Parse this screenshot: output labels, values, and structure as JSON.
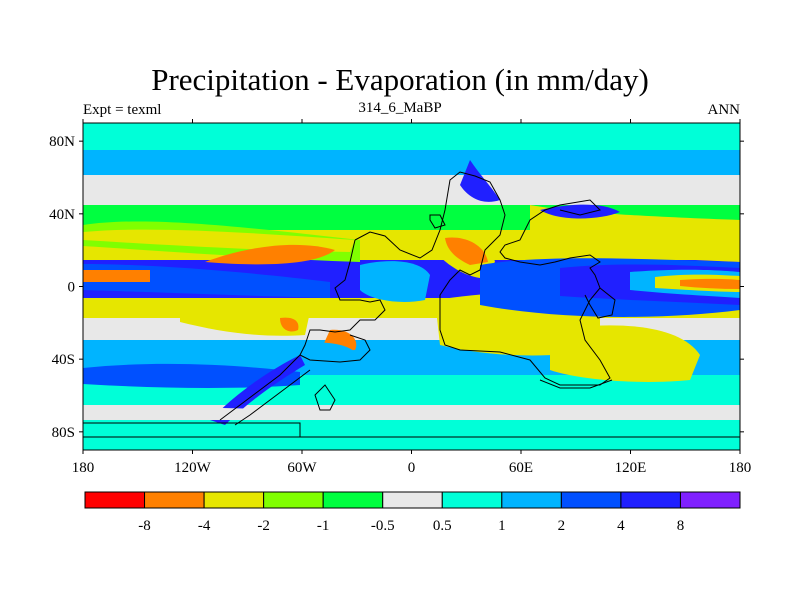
{
  "title": "Precipitation - Evaporation (in mm/day)",
  "expt_label": "Expt = texml",
  "run_label": "314_6_MaBP",
  "season_label": "ANN",
  "map": {
    "lon_range": [
      -180,
      180
    ],
    "lat_range": [
      -90,
      90
    ],
    "lat_ticks": [
      {
        "value": 80,
        "label": "80N"
      },
      {
        "value": 40,
        "label": "40N"
      },
      {
        "value": 0,
        "label": "0"
      },
      {
        "value": -40,
        "label": "40S"
      },
      {
        "value": -80,
        "label": "80S"
      }
    ],
    "lon_ticks": [
      {
        "value": -180,
        "label": "180"
      },
      {
        "value": -120,
        "label": "120W"
      },
      {
        "value": -60,
        "label": "60W"
      },
      {
        "value": 0,
        "label": "0"
      },
      {
        "value": 60,
        "label": "60E"
      },
      {
        "value": 120,
        "label": "120E"
      },
      {
        "value": 180,
        "label": "180"
      }
    ]
  },
  "colorbar": {
    "colors": [
      "#ff0000",
      "#ff8000",
      "#e6e600",
      "#80ff00",
      "#00ff40",
      "#e8e8e8",
      "#00ffd8",
      "#00b4ff",
      "#0050ff",
      "#2020ff",
      "#8020ff"
    ],
    "labels": [
      "-8",
      "-4",
      "-2",
      "-1",
      "-0.5",
      "0.5",
      "1",
      "2",
      "4",
      "8"
    ]
  },
  "palette": {
    "orange": "#ff8000",
    "yellow": "#e6e600",
    "lime": "#80ff00",
    "green": "#00ff40",
    "gray": "#e8e8e8",
    "cyan": "#00ffd8",
    "sky": "#00b4ff",
    "blue": "#0050ff",
    "deep": "#2020ff"
  }
}
